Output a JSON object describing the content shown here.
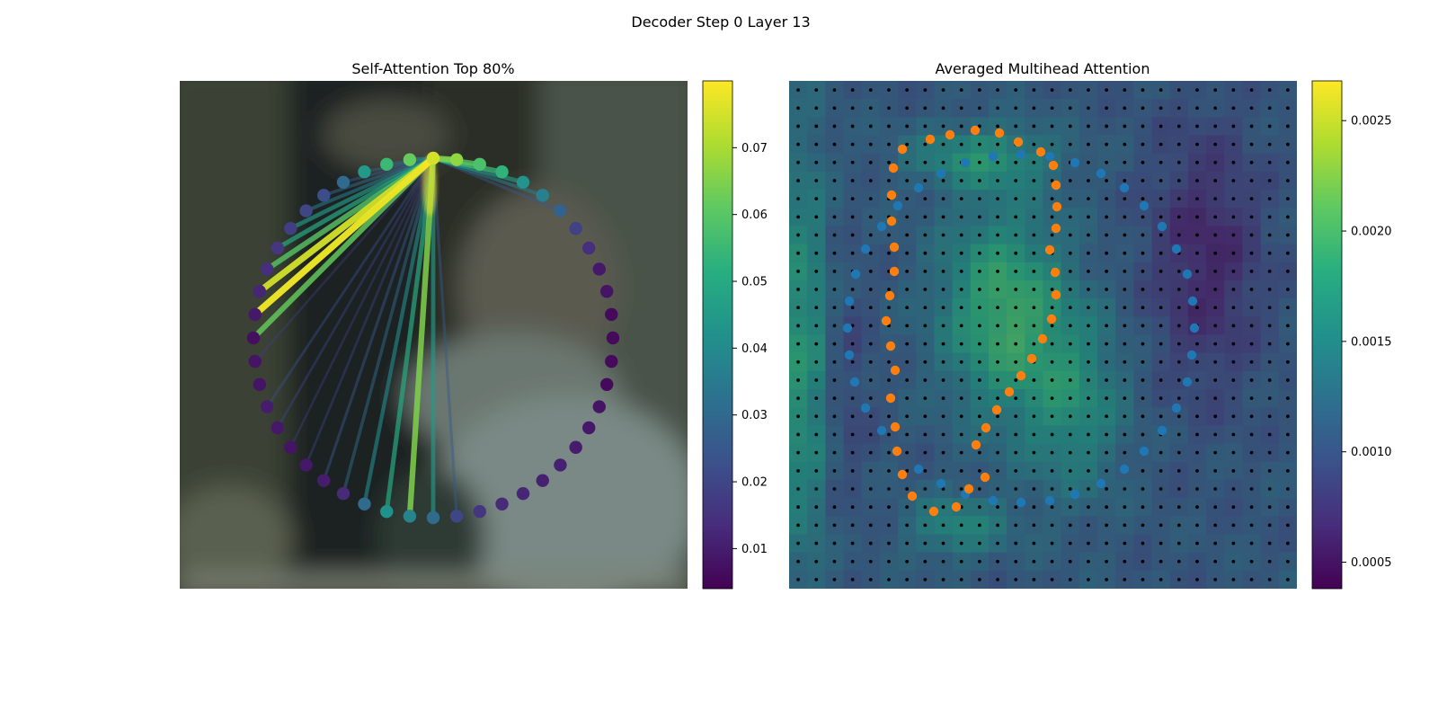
{
  "figure": {
    "suptitle": "Decoder Step 0 Layer 13"
  },
  "chart_data": [
    {
      "type": "network",
      "title": "Self-Attention Top 80%",
      "node_count": 48,
      "query_node": 0,
      "node_values": [
        0.075,
        0.067,
        0.058,
        0.053,
        0.043,
        0.037,
        0.028,
        0.019,
        0.014,
        0.009,
        0.008,
        0.006,
        0.006,
        0.006,
        0.006,
        0.008,
        0.009,
        0.01,
        0.011,
        0.011,
        0.012,
        0.013,
        0.016,
        0.02,
        0.03,
        0.038,
        0.042,
        0.03,
        0.013,
        0.01,
        0.009,
        0.008,
        0.009,
        0.01,
        0.008,
        0.008,
        0.007,
        0.009,
        0.012,
        0.014,
        0.016,
        0.018,
        0.02,
        0.022,
        0.03,
        0.045,
        0.055,
        0.062
      ],
      "edges": [
        {
          "to": 1,
          "weight": 0.065
        },
        {
          "to": 2,
          "weight": 0.06
        },
        {
          "to": 3,
          "weight": 0.055
        },
        {
          "to": 4,
          "weight": 0.045
        },
        {
          "to": 5,
          "weight": 0.035
        },
        {
          "to": 6,
          "weight": 0.025
        },
        {
          "to": 23,
          "weight": 0.025
        },
        {
          "to": 24,
          "weight": 0.045
        },
        {
          "to": 25,
          "weight": 0.065
        },
        {
          "to": 26,
          "weight": 0.05
        },
        {
          "to": 27,
          "weight": 0.04
        },
        {
          "to": 28,
          "weight": 0.03
        },
        {
          "to": 29,
          "weight": 0.025
        },
        {
          "to": 30,
          "weight": 0.02
        },
        {
          "to": 31,
          "weight": 0.018
        },
        {
          "to": 32,
          "weight": 0.02
        },
        {
          "to": 33,
          "weight": 0.022
        },
        {
          "to": 35,
          "weight": 0.018
        },
        {
          "to": 36,
          "weight": 0.062
        },
        {
          "to": 37,
          "weight": 0.078
        },
        {
          "to": 38,
          "weight": 0.075
        },
        {
          "to": 39,
          "weight": 0.06
        },
        {
          "to": 40,
          "weight": 0.05
        },
        {
          "to": 41,
          "weight": 0.045
        },
        {
          "to": 42,
          "weight": 0.035
        },
        {
          "to": 43,
          "weight": 0.03
        },
        {
          "to": 44,
          "weight": 0.025
        },
        {
          "to": 45,
          "weight": 0.028
        },
        {
          "to": 46,
          "weight": 0.03
        },
        {
          "to": 47,
          "weight": 0.04
        }
      ],
      "colorbar": {
        "colormap": "viridis",
        "vmin": 0.004,
        "vmax": 0.08,
        "ticks": [
          "0.01",
          "0.02",
          "0.03",
          "0.04",
          "0.05",
          "0.06",
          "0.07"
        ]
      }
    },
    {
      "type": "heatmap",
      "title": "Averaged Multihead Attention",
      "grid_size": [
        28,
        28
      ],
      "colorbar": {
        "colormap": "viridis",
        "vmin": 0.00038,
        "vmax": 0.00268,
        "ticks": [
          "0.0005",
          "0.0010",
          "0.0015",
          "0.0020",
          "0.0025"
        ]
      },
      "orange_points": [
        [
          1004,
          166
        ],
        [
          1035,
          155
        ],
        [
          1057,
          150
        ],
        [
          1085,
          145
        ],
        [
          1112,
          148
        ],
        [
          1133,
          158
        ],
        [
          1158,
          169
        ],
        [
          1172,
          184
        ],
        [
          1175,
          206
        ],
        [
          1176,
          230
        ],
        [
          1175,
          254
        ],
        [
          1168,
          278
        ],
        [
          1174,
          303
        ],
        [
          1175,
          328
        ],
        [
          1170,
          355
        ],
        [
          1160,
          377
        ],
        [
          1148,
          399
        ],
        [
          1136,
          418
        ],
        [
          1123,
          436
        ],
        [
          1109,
          456
        ],
        [
          1097,
          476
        ],
        [
          1086,
          495
        ],
        [
          1096,
          531
        ],
        [
          1078,
          544
        ],
        [
          1064,
          564
        ],
        [
          1039,
          569
        ],
        [
          1015,
          552
        ],
        [
          1004,
          528
        ],
        [
          998,
          502
        ],
        [
          996,
          475
        ],
        [
          991,
          443
        ],
        [
          996,
          412
        ],
        [
          991,
          385
        ],
        [
          986,
          357
        ],
        [
          990,
          329
        ],
        [
          995,
          302
        ],
        [
          995,
          275
        ],
        [
          992,
          246
        ],
        [
          992,
          217
        ],
        [
          994,
          187
        ]
      ],
      "blue_points": [
        [
          1047,
          193
        ],
        [
          1074,
          181
        ],
        [
          1105,
          174
        ],
        [
          1136,
          172
        ],
        [
          1168,
          174
        ],
        [
          1196,
          181
        ],
        [
          1225,
          193
        ],
        [
          1251,
          209
        ],
        [
          1273,
          229
        ],
        [
          1293,
          252
        ],
        [
          1309,
          277
        ],
        [
          1321,
          305
        ],
        [
          1327,
          335
        ],
        [
          1329,
          365
        ],
        [
          1326,
          395
        ],
        [
          1321,
          425
        ],
        [
          1309,
          454
        ],
        [
          1293,
          479
        ],
        [
          1273,
          502
        ],
        [
          1251,
          522
        ],
        [
          1225,
          538
        ],
        [
          1196,
          550
        ],
        [
          1168,
          557
        ],
        [
          1136,
          559
        ],
        [
          1105,
          557
        ],
        [
          1074,
          550
        ],
        [
          1047,
          538
        ],
        [
          1022,
          522
        ],
        [
          981,
          479
        ],
        [
          963,
          454
        ],
        [
          951,
          425
        ],
        [
          945,
          395
        ],
        [
          943,
          365
        ],
        [
          945,
          335
        ],
        [
          952,
          305
        ],
        [
          963,
          277
        ],
        [
          981,
          252
        ],
        [
          999,
          229
        ],
        [
          1022,
          209
        ]
      ]
    }
  ]
}
